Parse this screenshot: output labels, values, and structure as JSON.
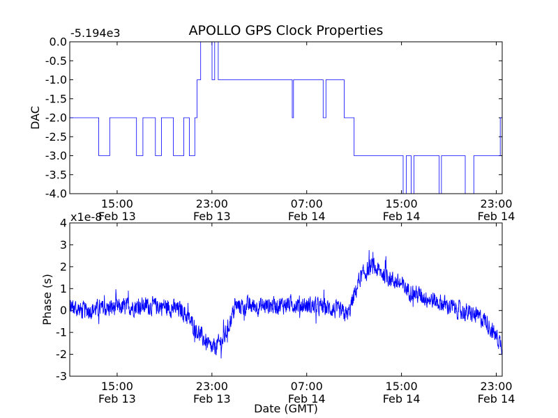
{
  "chart_data": [
    {
      "type": "line",
      "title": "APOLLO GPS Clock Properties",
      "ylabel": "DAC",
      "xlabel": "",
      "y_offset_text": "-5.194e3",
      "ylim": [
        -4.0,
        0.0
      ],
      "y_ticks": [
        "0.0",
        "-0.5",
        "-1.0",
        "-1.5",
        "-2.0",
        "-2.5",
        "-3.0",
        "-3.5",
        "-4.0"
      ],
      "x_ticks": [
        {
          "time": "15:00",
          "date": "Feb 13"
        },
        {
          "time": "23:00",
          "date": "Feb 13"
        },
        {
          "time": "07:00",
          "date": "Feb 14"
        },
        {
          "time": "15:00",
          "date": "Feb 14"
        },
        {
          "time": "23:00",
          "date": "Feb 14"
        }
      ],
      "x_range_hours": [
        "Feb 13 11:00",
        "Feb 14 23:30"
      ],
      "series": [
        {
          "color": "#0000ff",
          "segments": [
            {
              "start": "Feb 13 11:00",
              "end": "Feb 13 16:20",
              "base": -2.0,
              "flicker": -3.0
            },
            {
              "start": "Feb 13 16:20",
              "end": "Feb 13 19:45",
              "base": -2.0,
              "flicker": -3.0
            },
            {
              "start": "Feb 13 19:45",
              "end": "Feb 13 21:45",
              "base": -2.0,
              "flicker": -3.0
            },
            {
              "start": "Feb 13 21:45",
              "end": "Feb 14 00:50",
              "base": -1.0,
              "flicker": 0.0
            },
            {
              "start": "Feb 14 00:50",
              "end": "Feb 14 11:00",
              "base": -1.0,
              "flicker": -2.0
            },
            {
              "start": "Feb 14 11:00",
              "end": "Feb 14 12:50",
              "base": -3.0,
              "flicker": -3.0
            },
            {
              "start": "Feb 14 12:50",
              "end": "Feb 14 23:20",
              "base": -3.0,
              "flicker": -4.0
            },
            {
              "start": "Feb 14 23:20",
              "end": "Feb 14 23:30",
              "base": -2.0,
              "flicker": -3.0
            }
          ]
        }
      ]
    },
    {
      "type": "line",
      "title": "",
      "ylabel": "Phase (s)",
      "xlabel": "Date (GMT)",
      "y_offset_text": "x1e-8",
      "ylim": [
        -3,
        4
      ],
      "y_ticks": [
        "4",
        "3",
        "2",
        "1",
        "0",
        "-1",
        "-2",
        "-3"
      ],
      "x_ticks": [
        {
          "time": "15:00",
          "date": "Feb 13"
        },
        {
          "time": "23:00",
          "date": "Feb 13"
        },
        {
          "time": "07:00",
          "date": "Feb 14"
        },
        {
          "time": "15:00",
          "date": "Feb 14"
        },
        {
          "time": "23:00",
          "date": "Feb 14"
        }
      ],
      "x_range_hours": [
        "Feb 13 11:00",
        "Feb 14 23:30"
      ],
      "series": [
        {
          "color": "#0000ff",
          "trend": [
            {
              "t": "Feb 13 11:00",
              "y": 0.2
            },
            {
              "t": "Feb 13 12:00",
              "y": 0.0
            },
            {
              "t": "Feb 13 14:00",
              "y": 0.1
            },
            {
              "t": "Feb 13 17:00",
              "y": 0.2
            },
            {
              "t": "Feb 13 19:00",
              "y": 0.2
            },
            {
              "t": "Feb 13 20:30",
              "y": 0.0
            },
            {
              "t": "Feb 13 22:00",
              "y": -1.1
            },
            {
              "t": "Feb 13 23:00",
              "y": -1.8
            },
            {
              "t": "Feb 14 00:00",
              "y": -1.3
            },
            {
              "t": "Feb 14 01:00",
              "y": 0.2
            },
            {
              "t": "Feb 14 03:00",
              "y": 0.2
            },
            {
              "t": "Feb 14 06:00",
              "y": 0.3
            },
            {
              "t": "Feb 14 09:00",
              "y": 0.1
            },
            {
              "t": "Feb 14 10:30",
              "y": -0.2
            },
            {
              "t": "Feb 14 11:30",
              "y": 1.5
            },
            {
              "t": "Feb 14 12:30",
              "y": 2.0
            },
            {
              "t": "Feb 14 14:00",
              "y": 1.5
            },
            {
              "t": "Feb 14 16:00",
              "y": 0.8
            },
            {
              "t": "Feb 14 19:00",
              "y": 0.2
            },
            {
              "t": "Feb 14 22:00",
              "y": -0.4
            },
            {
              "t": "Feb 14 23:30",
              "y": -1.6
            }
          ],
          "noise_amplitude": 0.55
        }
      ]
    }
  ]
}
